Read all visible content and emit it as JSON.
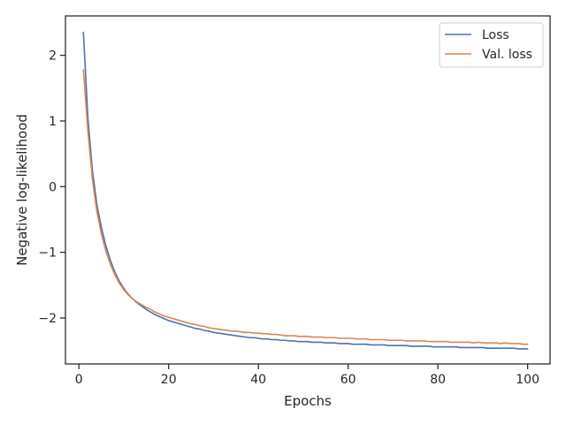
{
  "chart_data": {
    "type": "line",
    "xlabel": "Epochs",
    "ylabel": "Negative log-likelihood",
    "xlim": [
      -3,
      105
    ],
    "ylim": [
      -2.7,
      2.6
    ],
    "xticks": [
      0,
      20,
      40,
      60,
      80,
      100
    ],
    "yticks": [
      -2,
      -1,
      0,
      1,
      2
    ],
    "xtick_labels": [
      "0",
      "20",
      "40",
      "60",
      "80",
      "100"
    ],
    "ytick_labels": [
      "−2",
      "−1",
      "0",
      "1",
      "2"
    ],
    "grid": false,
    "legend_position": "top-right",
    "x": [
      1,
      2,
      3,
      4,
      5,
      6,
      7,
      8,
      9,
      10,
      11,
      12,
      13,
      14,
      15,
      16,
      17,
      18,
      19,
      20,
      21,
      22,
      23,
      24,
      25,
      26,
      27,
      28,
      29,
      30,
      31,
      32,
      33,
      34,
      35,
      36,
      37,
      38,
      39,
      40,
      41,
      42,
      43,
      44,
      45,
      46,
      47,
      48,
      49,
      50,
      51,
      52,
      53,
      54,
      55,
      56,
      57,
      58,
      59,
      60,
      61,
      62,
      63,
      64,
      65,
      66,
      67,
      68,
      69,
      70,
      71,
      72,
      73,
      74,
      75,
      76,
      77,
      78,
      79,
      80,
      81,
      82,
      83,
      84,
      85,
      86,
      87,
      88,
      89,
      90,
      91,
      92,
      93,
      94,
      95,
      96,
      97,
      98,
      99,
      100
    ],
    "series": [
      {
        "name": "Loss",
        "color": "#4c72b0",
        "values": [
          2.35,
          1.05,
          0.25,
          -0.27,
          -0.62,
          -0.9,
          -1.12,
          -1.3,
          -1.44,
          -1.55,
          -1.64,
          -1.71,
          -1.77,
          -1.82,
          -1.87,
          -1.91,
          -1.95,
          -1.98,
          -2.01,
          -2.04,
          -2.06,
          -2.08,
          -2.1,
          -2.12,
          -2.14,
          -2.16,
          -2.17,
          -2.19,
          -2.2,
          -2.22,
          -2.23,
          -2.24,
          -2.25,
          -2.26,
          -2.27,
          -2.28,
          -2.29,
          -2.3,
          -2.3,
          -2.31,
          -2.32,
          -2.32,
          -2.33,
          -2.33,
          -2.34,
          -2.34,
          -2.35,
          -2.35,
          -2.36,
          -2.36,
          -2.36,
          -2.37,
          -2.37,
          -2.37,
          -2.38,
          -2.38,
          -2.38,
          -2.39,
          -2.39,
          -2.39,
          -2.4,
          -2.4,
          -2.4,
          -2.4,
          -2.41,
          -2.41,
          -2.41,
          -2.41,
          -2.42,
          -2.42,
          -2.42,
          -2.42,
          -2.42,
          -2.43,
          -2.43,
          -2.43,
          -2.43,
          -2.43,
          -2.44,
          -2.44,
          -2.44,
          -2.44,
          -2.44,
          -2.44,
          -2.45,
          -2.45,
          -2.45,
          -2.45,
          -2.45,
          -2.45,
          -2.46,
          -2.46,
          -2.46,
          -2.46,
          -2.46,
          -2.46,
          -2.46,
          -2.47,
          -2.47,
          -2.47
        ]
      },
      {
        "name": "Val. loss",
        "color": "#dd8452",
        "values": [
          1.78,
          0.85,
          0.12,
          -0.38,
          -0.72,
          -0.98,
          -1.18,
          -1.34,
          -1.47,
          -1.57,
          -1.65,
          -1.71,
          -1.76,
          -1.8,
          -1.84,
          -1.87,
          -1.91,
          -1.94,
          -1.97,
          -1.99,
          -2.01,
          -2.03,
          -2.05,
          -2.07,
          -2.09,
          -2.1,
          -2.12,
          -2.13,
          -2.15,
          -2.16,
          -2.17,
          -2.18,
          -2.19,
          -2.2,
          -2.2,
          -2.21,
          -2.22,
          -2.22,
          -2.23,
          -2.23,
          -2.24,
          -2.24,
          -2.25,
          -2.25,
          -2.26,
          -2.27,
          -2.27,
          -2.27,
          -2.28,
          -2.28,
          -2.28,
          -2.29,
          -2.29,
          -2.29,
          -2.3,
          -2.3,
          -2.3,
          -2.31,
          -2.31,
          -2.31,
          -2.31,
          -2.32,
          -2.32,
          -2.32,
          -2.33,
          -2.33,
          -2.33,
          -2.33,
          -2.34,
          -2.34,
          -2.34,
          -2.34,
          -2.35,
          -2.35,
          -2.35,
          -2.35,
          -2.35,
          -2.36,
          -2.36,
          -2.36,
          -2.36,
          -2.36,
          -2.37,
          -2.37,
          -2.37,
          -2.37,
          -2.37,
          -2.38,
          -2.37,
          -2.38,
          -2.38,
          -2.38,
          -2.38,
          -2.39,
          -2.38,
          -2.39,
          -2.39,
          -2.39,
          -2.4,
          -2.4
        ]
      }
    ]
  }
}
